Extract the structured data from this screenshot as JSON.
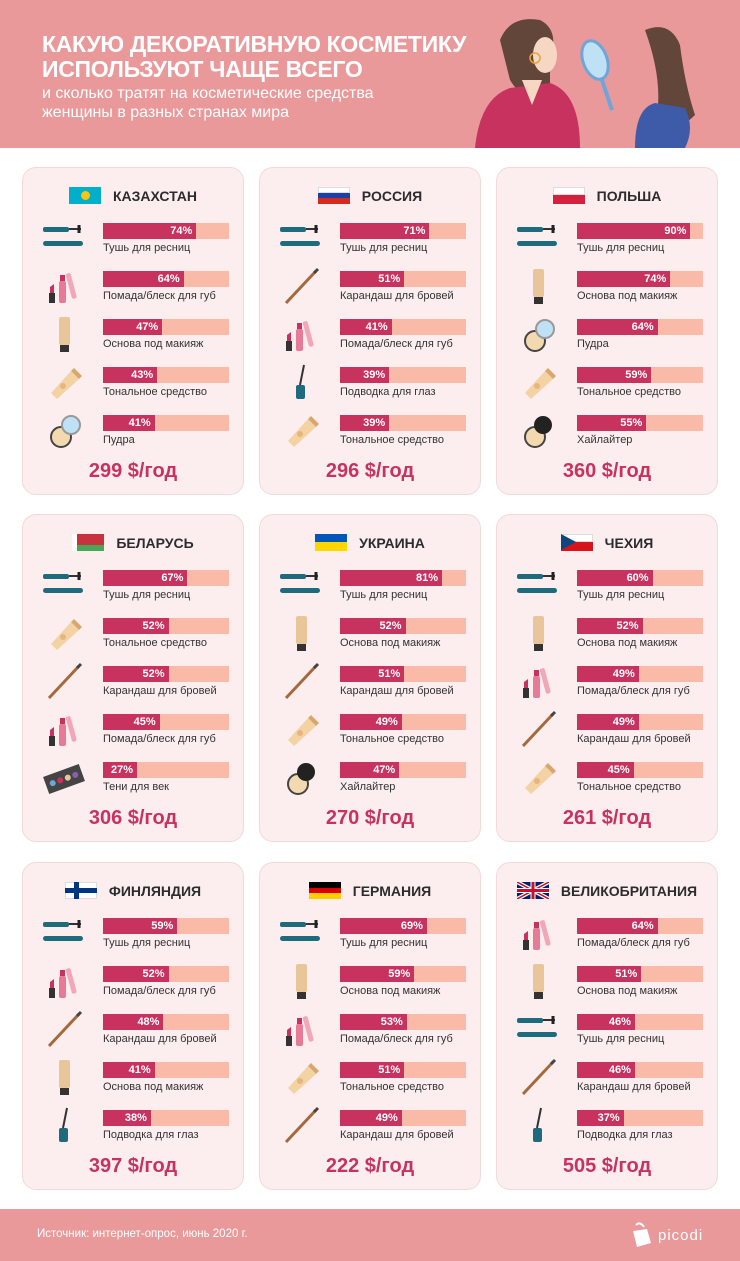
{
  "header": {
    "title_line1": "КАКУЮ ДЕКОРАТИВНУЮ КОСМЕТИКУ",
    "title_line2": "ИСПОЛЬЗУЮТ ЧАЩЕ ВСЕГО",
    "subtitle_line1": "и сколько тратят на косметические средства",
    "subtitle_line2": "женщины в разных странах мира"
  },
  "footer": {
    "source": "Источник: интернет-опрос, июнь 2020 г.",
    "logo": "picodi"
  },
  "colors": {
    "bar_fill": "#C8325F",
    "bar_track": "#F9BBA8",
    "header_bg": "#E9999A",
    "card_bg": "#FCEEEE"
  },
  "chart_data": [
    {
      "type": "bar",
      "orientation": "horizontal",
      "title": "КАЗАХСТАН",
      "flag": "kz",
      "price": "299 $/год",
      "xlim": [
        0,
        100
      ],
      "categories": [
        "Тушь для ресниц",
        "Помада/блеск для губ",
        "Основа под макияж",
        "Тональное средство",
        "Пудра"
      ],
      "icons": [
        "mascara",
        "lipstick",
        "foundation",
        "tube",
        "powder"
      ],
      "values": [
        74,
        64,
        47,
        43,
        41
      ]
    },
    {
      "type": "bar",
      "orientation": "horizontal",
      "title": "РОССИЯ",
      "flag": "ru",
      "price": "296 $/год",
      "xlim": [
        0,
        100
      ],
      "categories": [
        "Тушь для ресниц",
        "Карандаш для бровей",
        "Помада/блеск для губ",
        "Подводка для глаз",
        "Тональное средство"
      ],
      "icons": [
        "mascara",
        "pencil",
        "lipstick",
        "eyeliner",
        "tube"
      ],
      "values": [
        71,
        51,
        41,
        39,
        39
      ]
    },
    {
      "type": "bar",
      "orientation": "horizontal",
      "title": "ПОЛЬША",
      "flag": "pl",
      "price": "360 $/год",
      "xlim": [
        0,
        100
      ],
      "categories": [
        "Тушь для ресниц",
        "Основа под макияж",
        "Пудра",
        "Тональное средство",
        "Хайлайтер"
      ],
      "icons": [
        "mascara",
        "foundation",
        "powder",
        "tube",
        "highlighter"
      ],
      "values": [
        90,
        74,
        64,
        59,
        55
      ]
    },
    {
      "type": "bar",
      "orientation": "horizontal",
      "title": "БЕЛАРУСЬ",
      "flag": "by",
      "price": "306 $/год",
      "xlim": [
        0,
        100
      ],
      "categories": [
        "Тушь для ресниц",
        "Тональное средство",
        "Карандаш для бровей",
        "Помада/блеск для губ",
        "Тени для век"
      ],
      "icons": [
        "mascara",
        "tube",
        "pencil",
        "lipstick",
        "palette"
      ],
      "values": [
        67,
        52,
        52,
        45,
        27
      ]
    },
    {
      "type": "bar",
      "orientation": "horizontal",
      "title": "УКРАИНА",
      "flag": "ua",
      "price": "270 $/год",
      "xlim": [
        0,
        100
      ],
      "categories": [
        "Тушь для ресниц",
        "Основа под макияж",
        "Карандаш для бровей",
        "Тональное средство",
        "Хайлайтер"
      ],
      "icons": [
        "mascara",
        "foundation",
        "pencil",
        "tube",
        "highlighter"
      ],
      "values": [
        81,
        52,
        51,
        49,
        47
      ]
    },
    {
      "type": "bar",
      "orientation": "horizontal",
      "title": "ЧЕХИЯ",
      "flag": "cz",
      "price": "261 $/год",
      "xlim": [
        0,
        100
      ],
      "categories": [
        "Тушь для ресниц",
        "Основа под макияж",
        "Помада/блеск для губ",
        "Карандаш для бровей",
        "Тональное средство"
      ],
      "icons": [
        "mascara",
        "foundation",
        "lipstick",
        "pencil",
        "tube"
      ],
      "values": [
        60,
        52,
        49,
        49,
        45
      ]
    },
    {
      "type": "bar",
      "orientation": "horizontal",
      "title": "ФИНЛЯНДИЯ",
      "flag": "fi",
      "price": "397 $/год",
      "xlim": [
        0,
        100
      ],
      "categories": [
        "Тушь для ресниц",
        "Помада/блеск для губ",
        "Карандаш для бровей",
        "Основа под макияж",
        "Подводка для глаз"
      ],
      "icons": [
        "mascara",
        "lipstick",
        "pencil",
        "foundation",
        "eyeliner"
      ],
      "values": [
        59,
        52,
        48,
        41,
        38
      ]
    },
    {
      "type": "bar",
      "orientation": "horizontal",
      "title": "ГЕРМАНИЯ",
      "flag": "de",
      "price": "222 $/год",
      "xlim": [
        0,
        100
      ],
      "categories": [
        "Тушь для ресниц",
        "Основа под макияж",
        "Помада/блеск для губ",
        "Тональное средство",
        "Карандаш для бровей"
      ],
      "icons": [
        "mascara",
        "foundation",
        "lipstick",
        "tube",
        "pencil"
      ],
      "values": [
        69,
        59,
        53,
        51,
        49
      ]
    },
    {
      "type": "bar",
      "orientation": "horizontal",
      "title": "ВЕЛИКОБРИТАНИЯ",
      "flag": "gb",
      "price": "505 $/год",
      "xlim": [
        0,
        100
      ],
      "categories": [
        "Помада/блеск для губ",
        "Основа под макияж",
        "Тушь для ресниц",
        "Карандаш для бровей",
        "Подводка для глаз"
      ],
      "icons": [
        "lipstick",
        "foundation",
        "mascara",
        "pencil",
        "eyeliner"
      ],
      "values": [
        64,
        51,
        46,
        46,
        37
      ]
    }
  ]
}
